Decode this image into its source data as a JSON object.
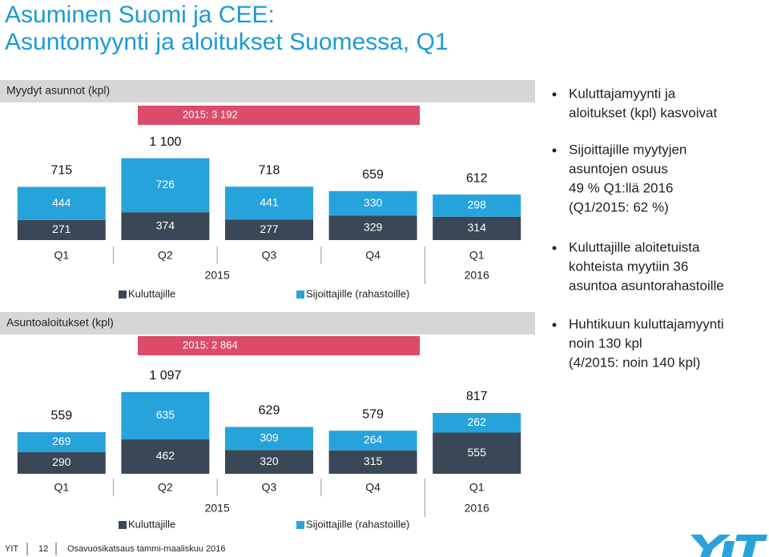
{
  "header": {
    "title": [
      "Asuminen Suomi ja CEE:",
      "Asuntomyynti ja aloitukset Suomessa, Q1"
    ]
  },
  "chart_data": [
    {
      "type": "bar",
      "stacked": true,
      "title": "Myydyt asunnot (kpl)",
      "annotation": "2015: 3 192",
      "categories": [
        "Q1",
        "Q2",
        "Q3",
        "Q4",
        "Q1"
      ],
      "group_labels": [
        "2015",
        "2016"
      ],
      "series": [
        {
          "name": "Kuluttajille",
          "color": "#3a4756",
          "values": [
            271,
            374,
            277,
            329,
            314
          ]
        },
        {
          "name": "Sijoittajille (rahastoille)",
          "color": "#27a3dc",
          "values": [
            444,
            726,
            441,
            330,
            298
          ]
        }
      ],
      "totals": [
        715,
        1100,
        718,
        659,
        612
      ],
      "total_labels": [
        "715",
        "1 100",
        "718",
        "659",
        "612"
      ]
    },
    {
      "type": "bar",
      "stacked": true,
      "title": "Asuntoaloitukset (kpl)",
      "annotation": "2015: 2 864",
      "categories": [
        "Q1",
        "Q2",
        "Q3",
        "Q4",
        "Q1"
      ],
      "group_labels": [
        "2015",
        "2016"
      ],
      "series": [
        {
          "name": "Kuluttajille",
          "color": "#3a4756",
          "values": [
            290,
            462,
            320,
            315,
            555
          ]
        },
        {
          "name": "Sijoittajille (rahastoille)",
          "color": "#27a3dc",
          "values": [
            269,
            635,
            309,
            264,
            262
          ]
        }
      ],
      "totals": [
        559,
        1097,
        629,
        579,
        817
      ],
      "total_labels": [
        "559",
        "1 097",
        "629",
        "579",
        "817"
      ]
    }
  ],
  "bullets": [
    [
      "Kuluttajamyynti ja",
      "aloitukset (kpl) kasvoivat"
    ],
    [
      "Sijoittajille myytyjen",
      "asuntojen osuus",
      "49 % Q1:llä 2016",
      "(Q1/2015: 62 %)"
    ],
    [
      "Kuluttajille aloitetuista",
      "kohteista myytiin 36",
      "asuntoa asuntorahastoille"
    ],
    [
      "Huhtikuun kuluttajamyynti",
      "noin 130 kpl",
      "(4/2015: noin 140 kpl)"
    ]
  ],
  "footer": [
    "YIT",
    "12",
    "Osavuosikatsaus tammi-maaliskuu 2016"
  ]
}
